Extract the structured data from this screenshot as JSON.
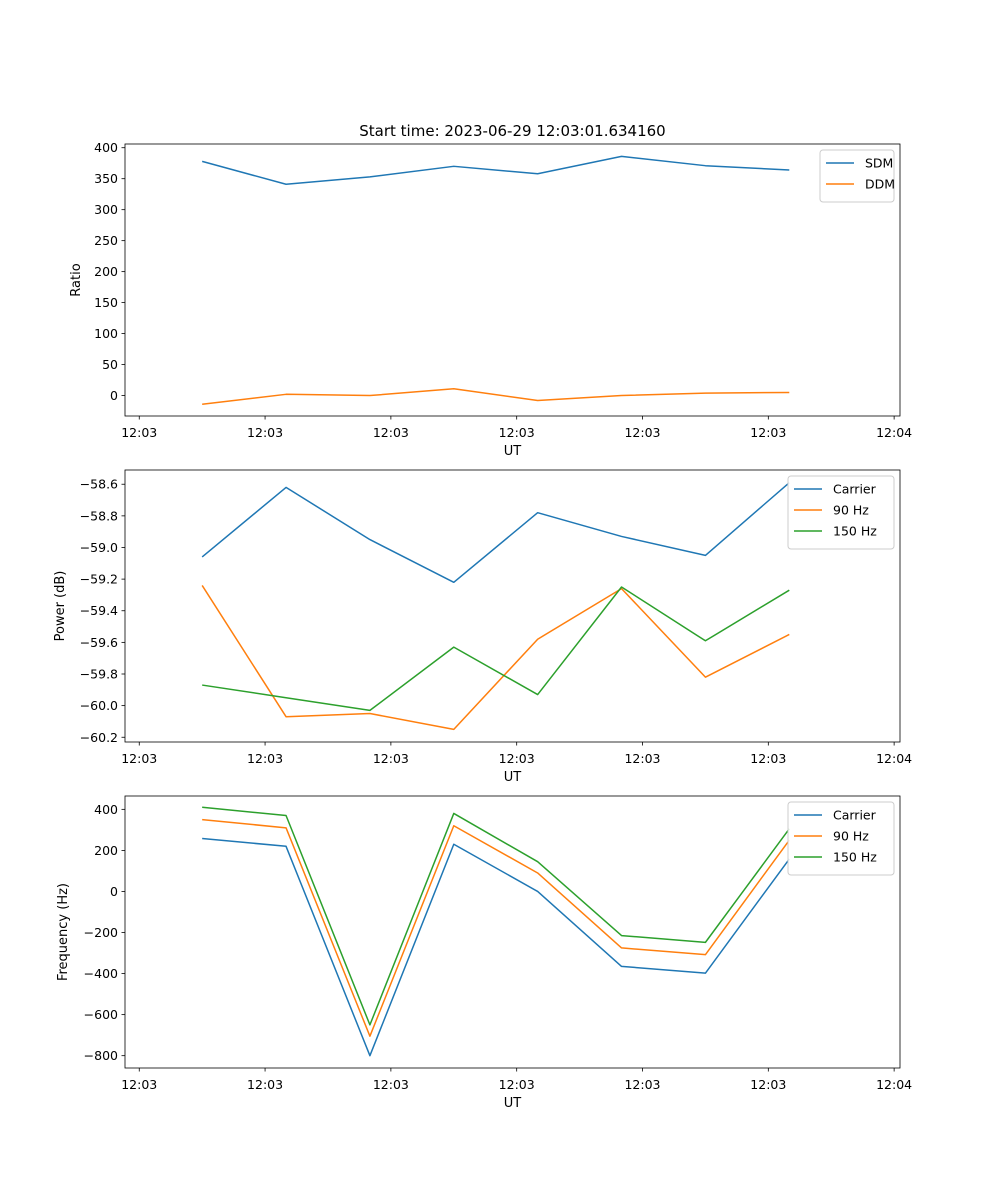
{
  "figure": {
    "title": "Start time: 2023-06-29 12:03:01.634160"
  },
  "colors": {
    "series1": "#1f77b4",
    "series2": "#ff7f0e",
    "series3": "#2ca02c"
  },
  "chart_data": [
    {
      "type": "line",
      "title": "Start time: 2023-06-29 12:03:01.634160",
      "xlabel": "UT",
      "ylabel": "Ratio",
      "ylim": [
        -33,
        406
      ],
      "yticks": [
        0,
        50,
        100,
        150,
        200,
        250,
        300,
        350,
        400
      ],
      "ytick_labels": [
        "0",
        "50",
        "100",
        "150",
        "200",
        "250",
        "300",
        "350",
        "400"
      ],
      "xlim": [
        -0.62,
        8.62
      ],
      "xticks": [
        -0.45,
        1.05,
        2.55,
        4.05,
        5.55,
        7.05,
        8.55
      ],
      "xtick_labels": [
        "12:03",
        "12:03",
        "12:03",
        "12:03",
        "12:03",
        "12:03",
        "12:04"
      ],
      "x": [
        0.3,
        1.3,
        2.3,
        3.3,
        4.3,
        5.3,
        6.3,
        7.3
      ],
      "grid": false,
      "legend_position": "top-right",
      "series": [
        {
          "name": "SDM",
          "color": "#1f77b4",
          "values": [
            378,
            341,
            353,
            370,
            358,
            386,
            371,
            364
          ]
        },
        {
          "name": "DDM",
          "color": "#ff7f0e",
          "values": [
            -14,
            2,
            0,
            11,
            -8,
            0,
            4,
            5
          ]
        }
      ]
    },
    {
      "type": "line",
      "title": "",
      "xlabel": "UT",
      "ylabel": "Power (dB)",
      "ylim": [
        -60.23,
        -58.51
      ],
      "yticks": [
        -60.2,
        -60.0,
        -59.8,
        -59.6,
        -59.4,
        -59.2,
        -59.0,
        -58.8,
        -58.6
      ],
      "ytick_labels": [
        "−60.2",
        "−60.0",
        "−59.8",
        "−59.6",
        "−59.4",
        "−59.2",
        "−59.0",
        "−58.8",
        "−58.6"
      ],
      "xlim": [
        -0.62,
        8.62
      ],
      "xticks": [
        -0.45,
        1.05,
        2.55,
        4.05,
        5.55,
        7.05,
        8.55
      ],
      "xtick_labels": [
        "12:03",
        "12:03",
        "12:03",
        "12:03",
        "12:03",
        "12:03",
        "12:04"
      ],
      "x": [
        0.3,
        1.3,
        2.3,
        3.3,
        4.3,
        5.3,
        6.3,
        7.3
      ],
      "grid": false,
      "legend_position": "top-right",
      "series": [
        {
          "name": "Carrier",
          "color": "#1f77b4",
          "values": [
            -59.06,
            -58.62,
            -58.95,
            -59.22,
            -58.78,
            -58.93,
            -59.05,
            -58.59
          ]
        },
        {
          "name": "90 Hz",
          "color": "#ff7f0e",
          "values": [
            -59.24,
            -60.07,
            -60.05,
            -60.15,
            -59.58,
            -59.26,
            -59.82,
            -59.55
          ]
        },
        {
          "name": "150 Hz",
          "color": "#2ca02c",
          "values": [
            -59.87,
            -59.95,
            -60.03,
            -59.63,
            -59.93,
            -59.25,
            -59.59,
            -59.27
          ]
        }
      ]
    },
    {
      "type": "line",
      "title": "",
      "xlabel": "UT",
      "ylabel": "Frequency (Hz)",
      "ylim": [
        -860,
        465
      ],
      "yticks": [
        -800,
        -600,
        -400,
        -200,
        0,
        200,
        400
      ],
      "ytick_labels": [
        "−800",
        "−600",
        "−400",
        "−200",
        "0",
        "200",
        "400"
      ],
      "xlim": [
        -0.62,
        8.62
      ],
      "xticks": [
        -0.45,
        1.05,
        2.55,
        4.05,
        5.55,
        7.05,
        8.55
      ],
      "xtick_labels": [
        "12:03",
        "12:03",
        "12:03",
        "12:03",
        "12:03",
        "12:03",
        "12:04"
      ],
      "x": [
        0.3,
        1.3,
        2.3,
        3.3,
        4.3,
        5.3,
        6.3,
        7.3
      ],
      "grid": false,
      "legend_position": "top-right",
      "series": [
        {
          "name": "Carrier",
          "color": "#1f77b4",
          "values": [
            258,
            220,
            -800,
            230,
            0,
            -365,
            -398,
            158
          ]
        },
        {
          "name": "90 Hz",
          "color": "#ff7f0e",
          "values": [
            350,
            310,
            -705,
            320,
            90,
            -275,
            -308,
            250
          ]
        },
        {
          "name": "150 Hz",
          "color": "#2ca02c",
          "values": [
            410,
            370,
            -650,
            380,
            145,
            -215,
            -248,
            305
          ]
        }
      ]
    }
  ]
}
